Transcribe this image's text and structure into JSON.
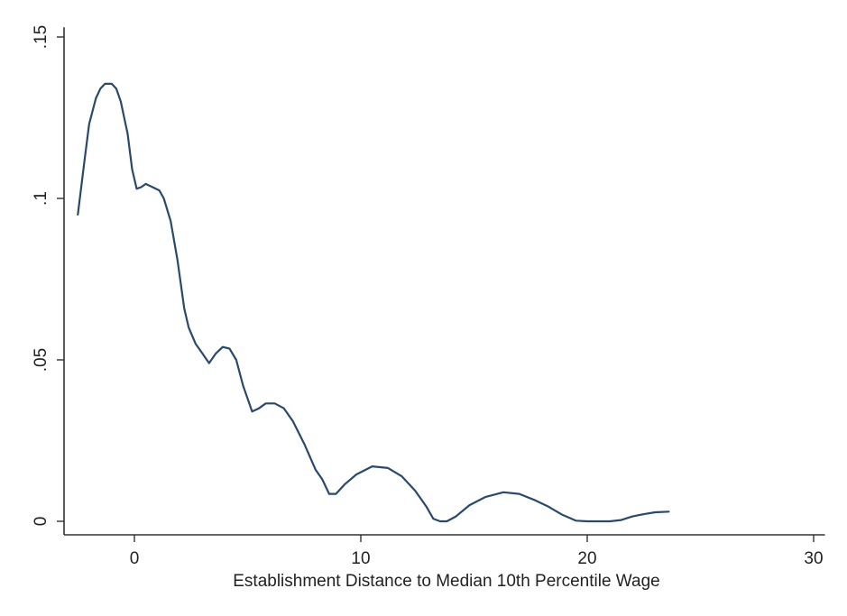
{
  "chart_data": {
    "type": "line",
    "title": "",
    "xlabel": "Establishment Distance to Median 10th Percentile Wage",
    "ylabel": "",
    "xlim": [
      -3,
      30.5
    ],
    "ylim": [
      -0.004,
      0.153
    ],
    "xticks": [
      0,
      10,
      20,
      30
    ],
    "xtick_labels": [
      "0",
      "10",
      "20",
      "30"
    ],
    "yticks": [
      0,
      0.05,
      0.1,
      0.15
    ],
    "ytick_labels": [
      "0",
      ".05",
      ".1",
      ".15"
    ],
    "grid": false,
    "legend": "none",
    "colors": {
      "line": "#2b4a6b",
      "axis": "#333333",
      "background": "#ffffff"
    },
    "series": [
      {
        "x": [
          -2.5,
          -2.2,
          -2.0,
          -1.7,
          -1.5,
          -1.3,
          -1.0,
          -0.8,
          -0.6,
          -0.3,
          -0.1,
          0.1,
          0.3,
          0.5,
          0.8,
          1.1,
          1.3,
          1.6,
          1.9,
          2.2,
          2.4,
          2.7,
          3.0,
          3.3,
          3.6,
          3.9,
          4.2,
          4.5,
          4.8,
          5.2,
          5.5,
          5.8,
          6.2,
          6.6,
          7.0,
          7.5,
          8.0,
          8.3,
          8.6,
          8.9,
          9.3,
          9.8,
          10.5,
          11.2,
          11.8,
          12.4,
          12.9,
          13.2,
          13.5,
          13.8,
          14.2,
          14.8,
          15.5,
          16.3,
          17.0,
          17.7,
          18.3,
          18.9,
          19.5,
          20.0,
          20.5,
          21.0,
          21.5,
          22.0,
          22.5,
          23.0,
          23.6
        ],
        "y": [
          0.095,
          0.112,
          0.123,
          0.131,
          0.134,
          0.1355,
          0.1355,
          0.134,
          0.13,
          0.12,
          0.109,
          0.103,
          0.1035,
          0.1045,
          0.1035,
          0.1025,
          0.1,
          0.093,
          0.081,
          0.066,
          0.06,
          0.055,
          0.052,
          0.049,
          0.052,
          0.054,
          0.0535,
          0.05,
          0.042,
          0.034,
          0.035,
          0.0365,
          0.0365,
          0.035,
          0.031,
          0.024,
          0.016,
          0.013,
          0.0085,
          0.0085,
          0.0115,
          0.0145,
          0.017,
          0.0165,
          0.014,
          0.0095,
          0.0045,
          0.0008,
          0.0,
          0.0,
          0.0015,
          0.005,
          0.0075,
          0.009,
          0.0085,
          0.0065,
          0.0045,
          0.002,
          0.0002,
          0.0,
          0.0,
          0.0,
          0.0004,
          0.0015,
          0.0022,
          0.0028,
          0.003
        ]
      }
    ]
  }
}
